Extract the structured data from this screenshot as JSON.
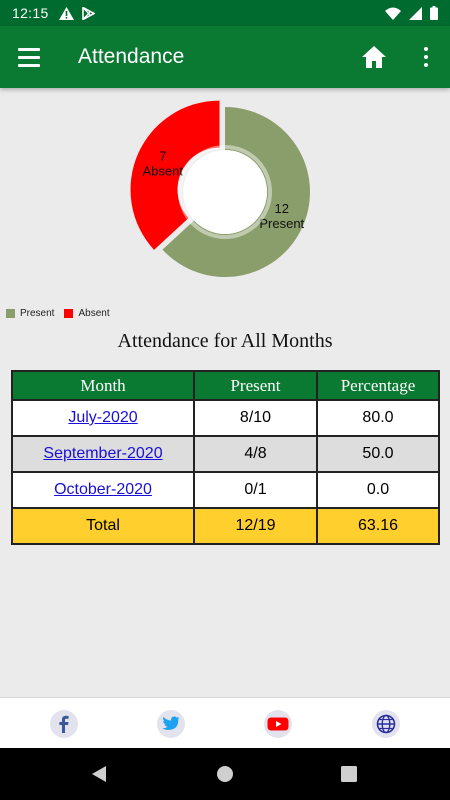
{
  "status": {
    "time": "12:15"
  },
  "app": {
    "title": "Attendance"
  },
  "icons": {
    "menu": "hamburger-menu-icon",
    "home": "home-icon",
    "more": "more-vertical-icon",
    "facebook": "facebook-icon",
    "twitter": "twitter-icon",
    "youtube": "youtube-icon",
    "web": "globe-icon"
  },
  "colors": {
    "primary": "#0a7a33",
    "present": "#8a9e6c",
    "absent": "#ff0000",
    "total_row": "#ffcf2e",
    "link": "#1a0fd6"
  },
  "chart_data": {
    "type": "pie",
    "variant": "donut",
    "slices": [
      {
        "label": "Present",
        "value": 12,
        "color": "#8a9e6c"
      },
      {
        "label": "Absent",
        "value": 7,
        "color": "#ff0000"
      }
    ],
    "legend": [
      "Present",
      "Absent"
    ],
    "legend_position": "bottom-left"
  },
  "section": {
    "title": "Attendance for All Months"
  },
  "table": {
    "headers": [
      "Month",
      "Present",
      "Percentage"
    ],
    "rows": [
      {
        "month": "July-2020",
        "present": "8/10",
        "percentage": "80.0"
      },
      {
        "month": "September-2020",
        "present": "4/8",
        "percentage": "50.0"
      },
      {
        "month": "October-2020",
        "present": "0/1",
        "percentage": "0.0"
      }
    ],
    "total": {
      "label": "Total",
      "present": "12/19",
      "percentage": "63.16"
    }
  }
}
